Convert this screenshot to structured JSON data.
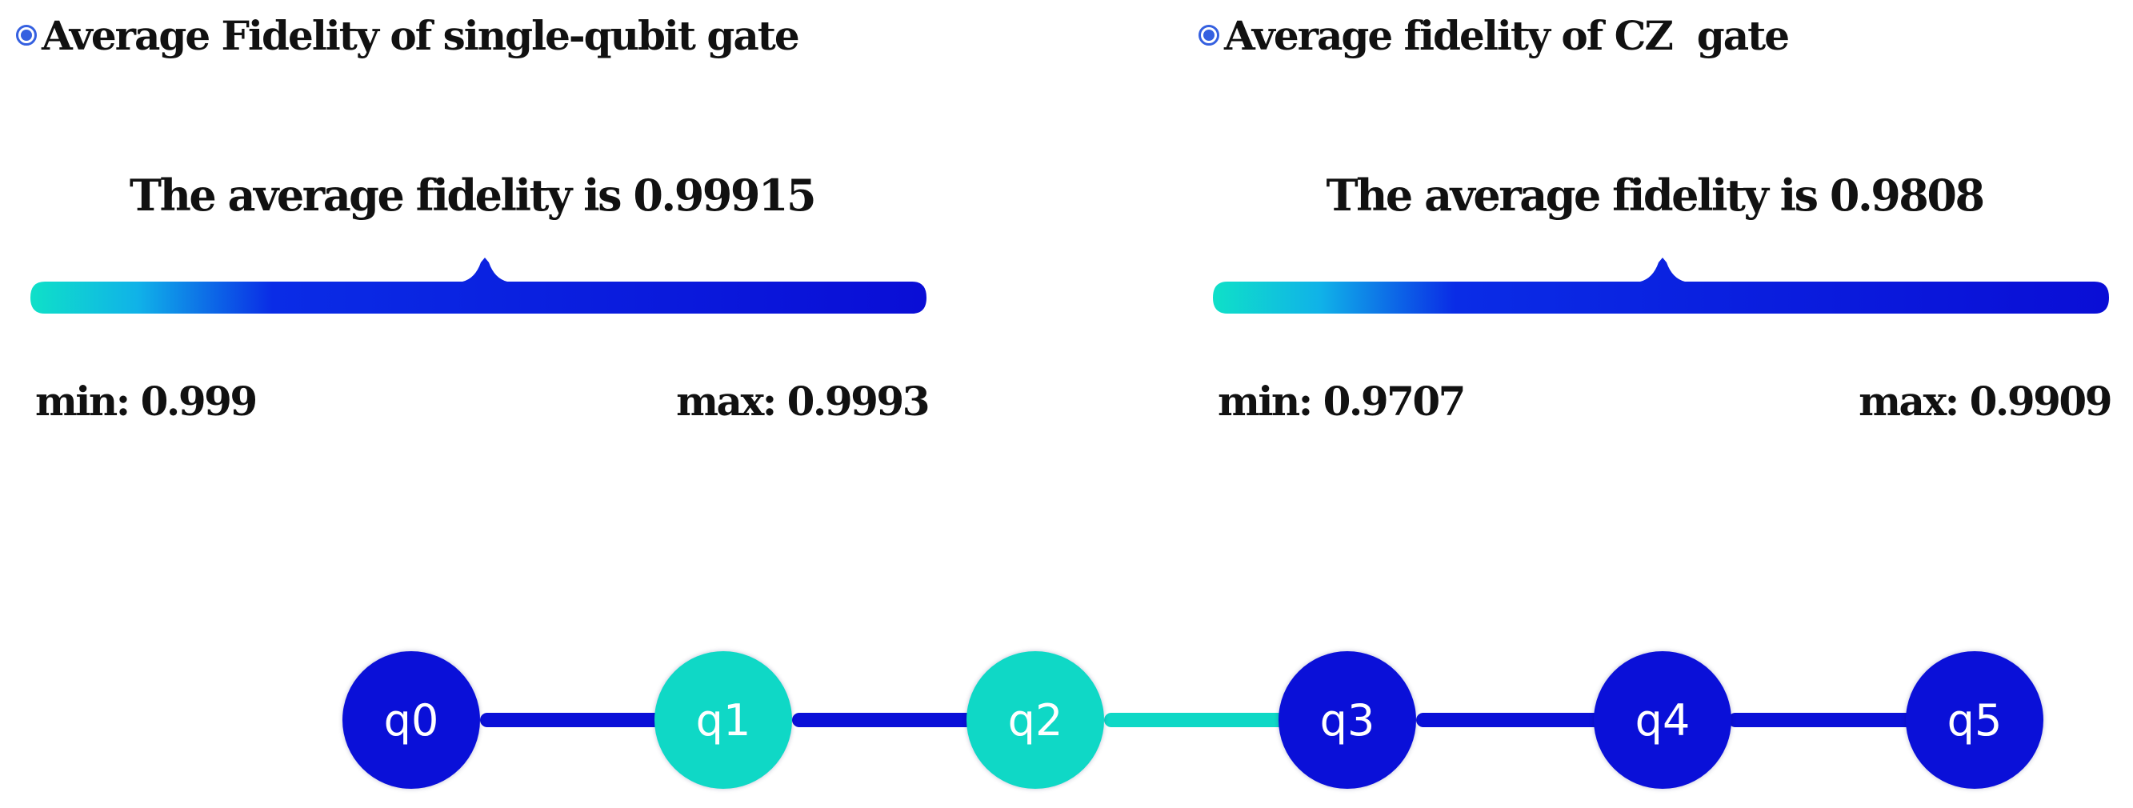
{
  "colors": {
    "high": "#0a10d8",
    "low": "#0fd8c6",
    "accent": "#3560e0"
  },
  "panels": [
    {
      "title": "Average Fidelity of single-qubit gate",
      "average_text": "The average fidelity is 0.99915",
      "average": 0.99915,
      "min_label": "min: 0.999",
      "max_label": "max: 0.9993",
      "min": 0.999,
      "max": 0.9993
    },
    {
      "title": "Average fidelity of CZ  gate",
      "average_text": "The average fidelity is 0.9808",
      "average": 0.9808,
      "min_label": "min: 0.9707",
      "max_label": "max: 0.9909",
      "min": 0.9707,
      "max": 0.9909
    }
  ],
  "qubits": [
    {
      "label": "q0",
      "level": "high"
    },
    {
      "label": "q1",
      "level": "low"
    },
    {
      "label": "q2",
      "level": "low"
    },
    {
      "label": "q3",
      "level": "high"
    },
    {
      "label": "q4",
      "level": "high"
    },
    {
      "label": "q5",
      "level": "high"
    }
  ],
  "couplers": [
    {
      "from": "q0",
      "to": "q1",
      "level": "high"
    },
    {
      "from": "q1",
      "to": "q2",
      "level": "high"
    },
    {
      "from": "q2",
      "to": "q3",
      "level": "low"
    },
    {
      "from": "q3",
      "to": "q4",
      "level": "high"
    },
    {
      "from": "q4",
      "to": "q5",
      "level": "high"
    }
  ]
}
